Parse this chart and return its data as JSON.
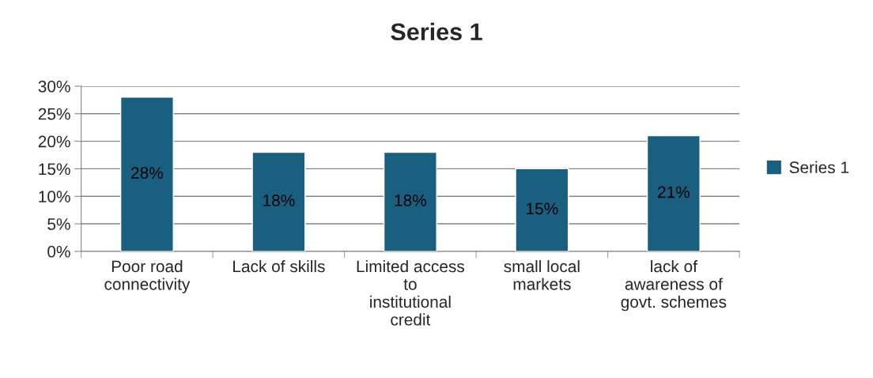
{
  "chart_data": {
    "type": "bar",
    "title": "Series 1",
    "categories": [
      "Poor road connectivity",
      "Lack of skills",
      "Limited access to institutional credit",
      "small local markets",
      "lack of awareness of govt. schemes"
    ],
    "series": [
      {
        "name": "Series 1",
        "color": "#195f80",
        "values": [
          28,
          18,
          18,
          15,
          21
        ],
        "value_labels": [
          "28%",
          "18%",
          "18%",
          "15%",
          "21%"
        ]
      }
    ],
    "ylim": [
      0,
      30
    ],
    "yticks": [
      {
        "value": 0,
        "label": "0%"
      },
      {
        "value": 5,
        "label": "5%"
      },
      {
        "value": 10,
        "label": "10%"
      },
      {
        "value": 15,
        "label": "15%"
      },
      {
        "value": 20,
        "label": "20%"
      },
      {
        "value": 25,
        "label": "25%"
      },
      {
        "value": 30,
        "label": "30%"
      }
    ],
    "grid": "y",
    "legend": "right"
  }
}
